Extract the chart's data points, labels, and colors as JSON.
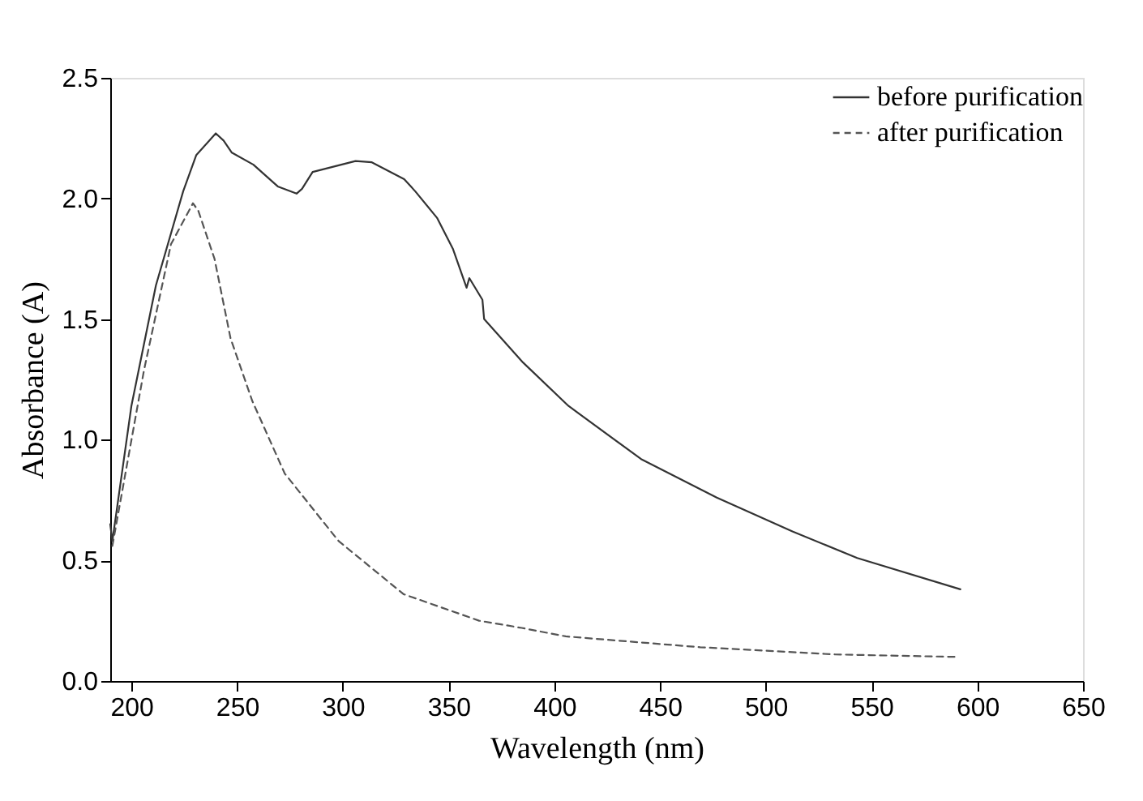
{
  "chart_data": {
    "type": "line",
    "xlabel": "Wavelength (nm)",
    "ylabel": "Absorbance (A)",
    "xlim": [
      190,
      650
    ],
    "xticks": [
      200,
      250,
      300,
      350,
      400,
      450,
      500,
      550,
      600,
      650
    ],
    "ylim": [
      0,
      2.5
    ],
    "yticks": [
      {
        "value": 0,
        "label": "0.0"
      },
      0.5,
      {
        "value": 1,
        "label": "1.0"
      },
      1.5,
      {
        "value": 2,
        "label": "2.0"
      },
      2.5
    ],
    "grid": false,
    "legend": "top right",
    "marker": "none",
    "series": [
      {
        "name": "before purification",
        "color": "#333333",
        "line_style": "solid",
        "x": [
          190,
          191,
          200,
          211.6,
          224.5,
          230.7,
          239.9,
          243.6,
          247.5,
          257.7,
          269.2,
          278.1,
          280.7,
          285.7,
          306,
          313.7,
          329,
          334.2,
          344.5,
          352.1,
          358.5,
          359.8,
          366,
          366.8,
          385.2,
          406.7,
          441,
          476.8,
          512.6,
          543.2,
          592
        ],
        "values": [
          0.65,
          0.58,
          1.14,
          1.64,
          2.03,
          2.18,
          2.27,
          2.24,
          2.19,
          2.14,
          2.05,
          2.02,
          2.04,
          2.11,
          2.155,
          2.15,
          2.08,
          2.03,
          1.92,
          1.79,
          1.63,
          1.67,
          1.58,
          1.5,
          1.32,
          1.14,
          0.92,
          0.76,
          0.62,
          0.51,
          0.38
        ]
      },
      {
        "name": "after  purification",
        "color": "#555555",
        "line_style": "dashed",
        "x": [
          191,
          206,
          218.7,
          229.1,
          231.6,
          239.3,
          246.9,
          257.2,
          272.5,
          298,
          328.7,
          364.4,
          384.6,
          405.4,
          469,
          532.9,
          590
        ],
        "values": [
          0.56,
          1.29,
          1.81,
          1.98,
          1.95,
          1.75,
          1.42,
          1.16,
          0.86,
          0.58,
          0.36,
          0.25,
          0.22,
          0.185,
          0.14,
          0.11,
          0.1
        ]
      }
    ]
  }
}
